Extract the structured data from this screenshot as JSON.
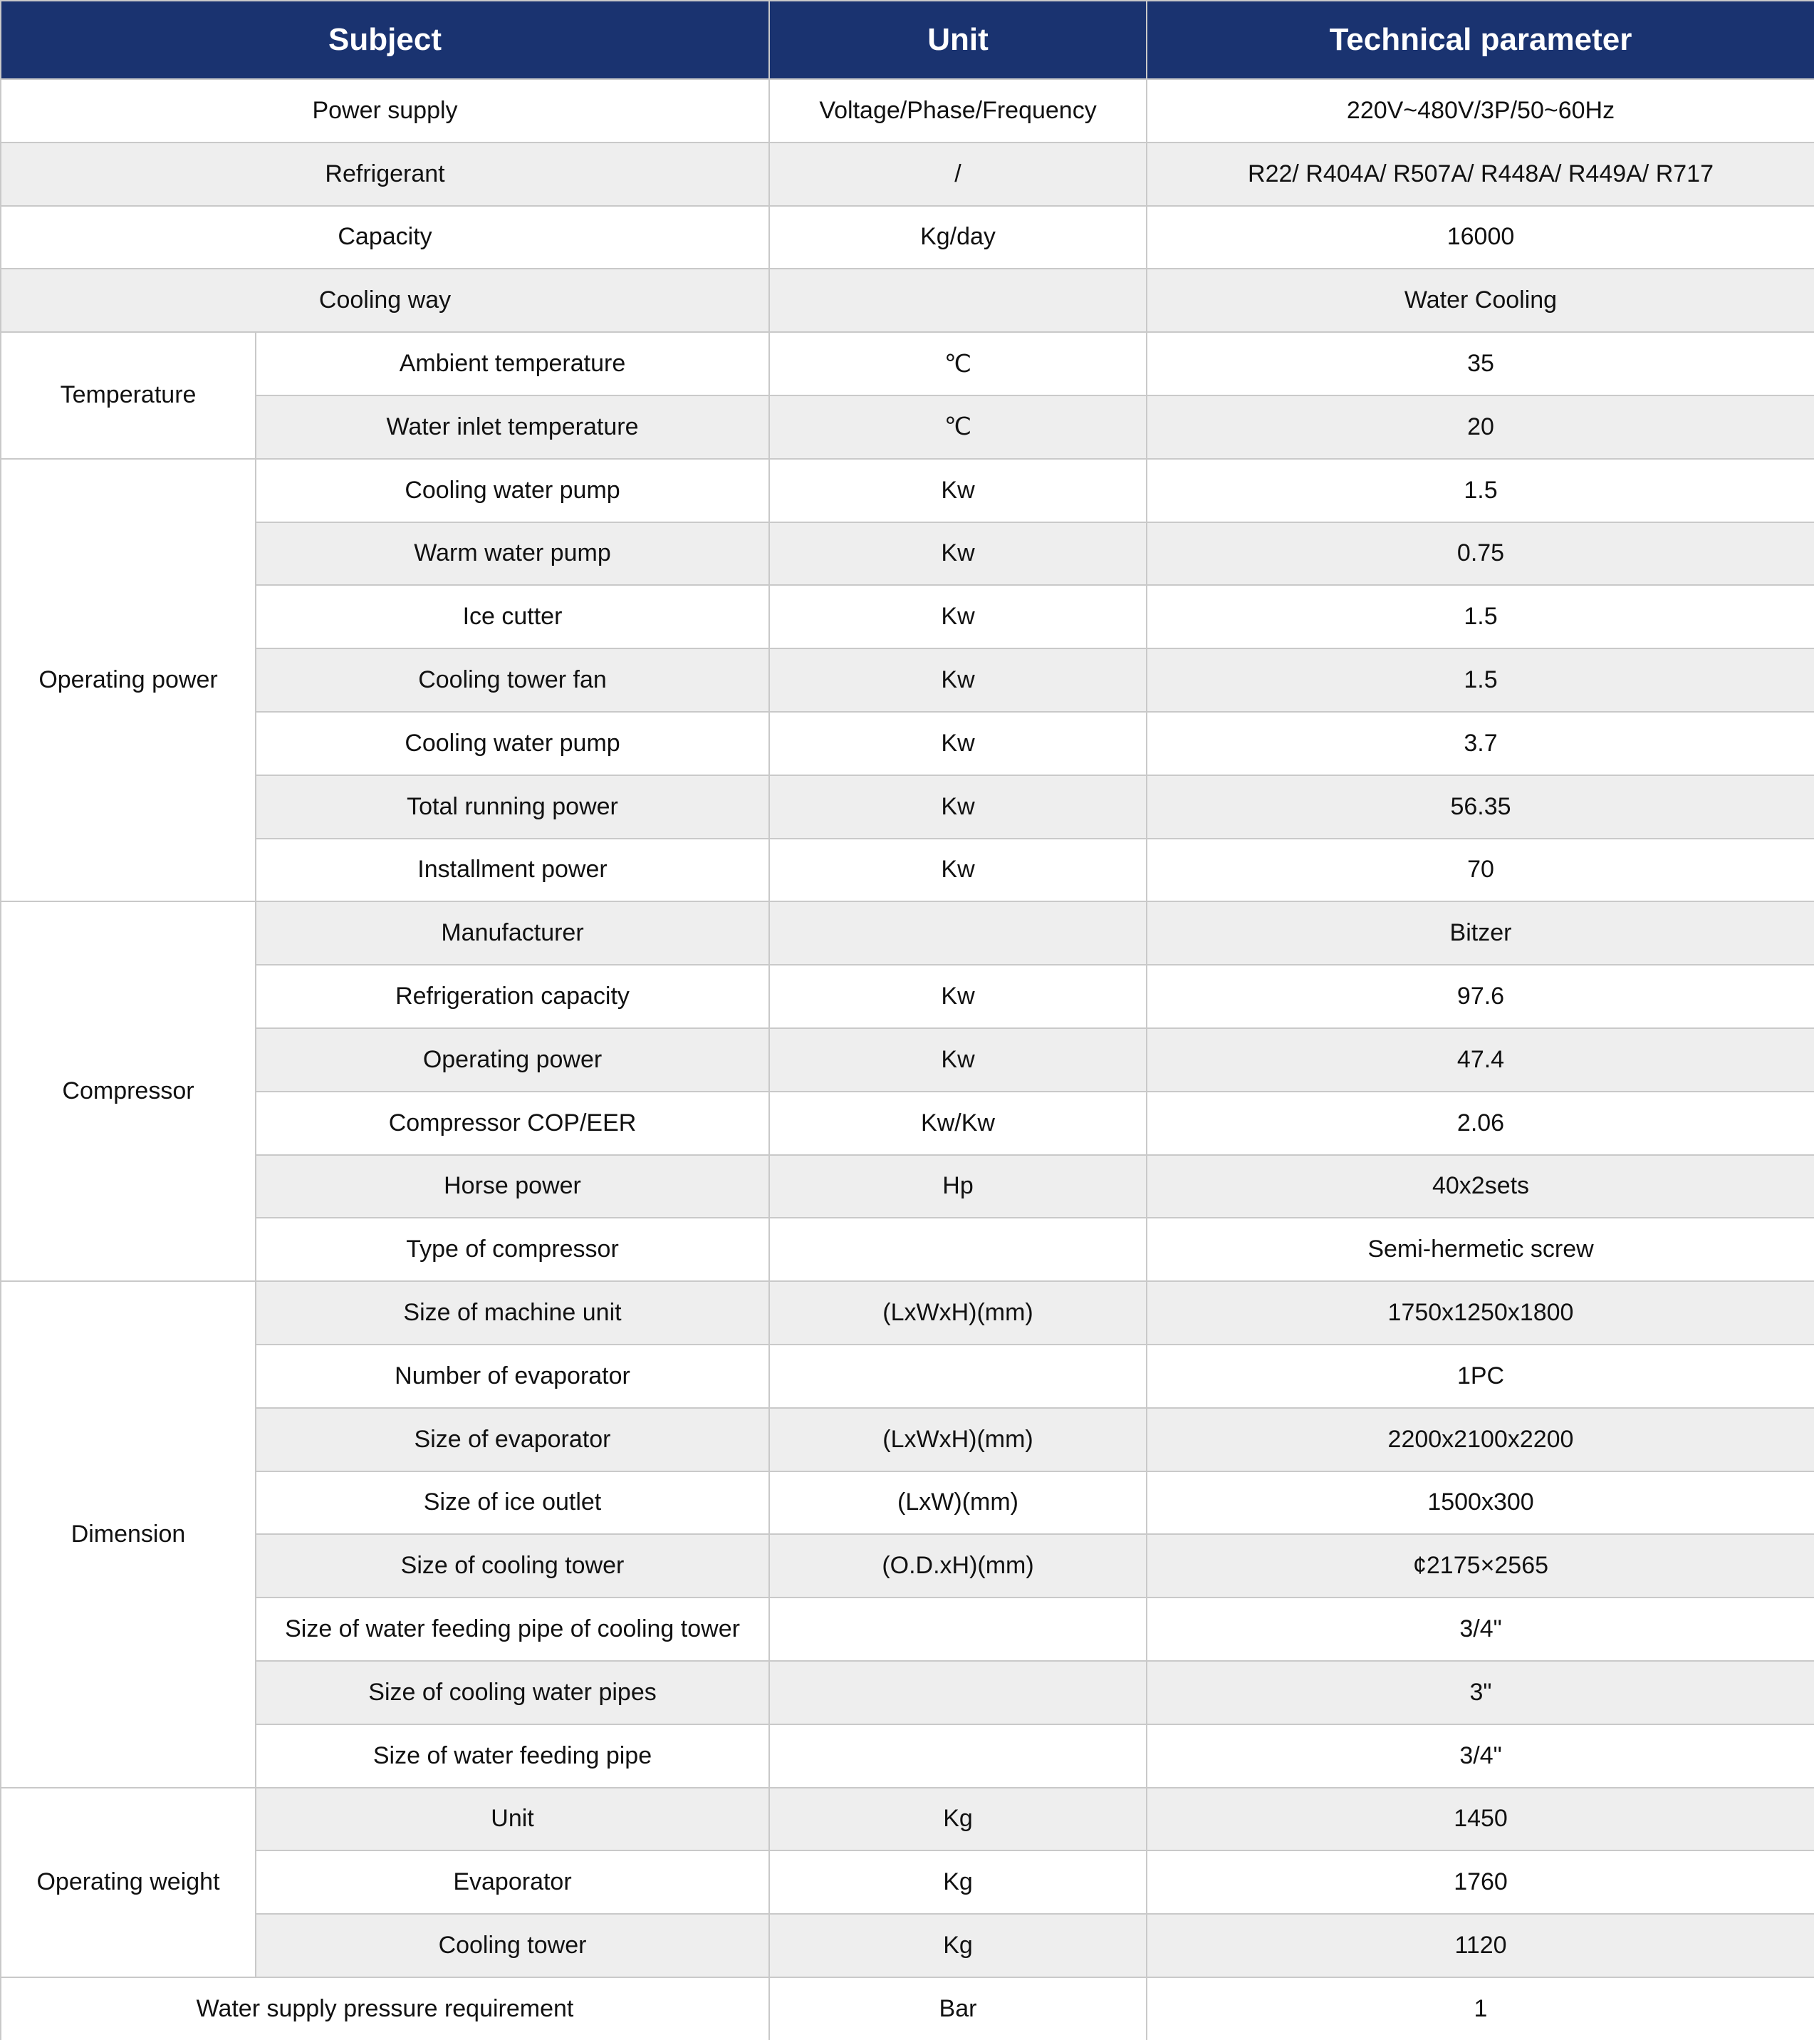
{
  "table": {
    "header": [
      "Subject",
      "Unit",
      "Technical parameter"
    ],
    "rows": [
      {
        "subject": "Power supply",
        "unit": "Voltage/Phase/Frequency",
        "value": "220V~480V/3P/50~60Hz"
      },
      {
        "subject": "Refrigerant",
        "unit": "/",
        "value": "R22/ R404A/ R507A/ R448A/ R449A/ R717"
      },
      {
        "subject": "Capacity",
        "unit": "Kg/day",
        "value": "16000"
      },
      {
        "subject": "Cooling way",
        "value": "Water Cooling"
      },
      {
        "group": "Temperature",
        "items": [
          {
            "subject": "Ambient temperature",
            "unit": "℃",
            "value": "35"
          },
          {
            "subject": "Water inlet temperature",
            "unit": "℃",
            "value": "20"
          }
        ]
      },
      {
        "group": "Operating power",
        "items": [
          {
            "subject": "Cooling water pump",
            "unit": "Kw",
            "value": "1.5"
          },
          {
            "subject": "Warm water pump",
            "unit": "Kw",
            "value": "0.75"
          },
          {
            "subject": "Ice cutter",
            "unit": "Kw",
            "value": "1.5"
          },
          {
            "subject": "Cooling tower fan",
            "unit": "Kw",
            "value": "1.5"
          },
          {
            "subject": "Cooling water pump",
            "unit": "Kw",
            "value": "3.7"
          },
          {
            "subject": "Total running power",
            "unit": "Kw",
            "value": "56.35"
          },
          {
            "subject": "Installment power",
            "unit": "Kw",
            "value": "70"
          }
        ]
      },
      {
        "group": "Compressor",
        "items": [
          {
            "subject": "Manufacturer",
            "value": "Bitzer"
          },
          {
            "subject": "Refrigeration capacity",
            "unit": "Kw",
            "value": "97.6"
          },
          {
            "subject": "Operating power",
            "unit": "Kw",
            "value": "47.4"
          },
          {
            "subject": "Compressor COP/EER",
            "unit": "Kw/Kw",
            "value": "2.06"
          },
          {
            "subject": "Horse power",
            "unit": "Hp",
            "value": "40x2sets"
          },
          {
            "subject": "Type of compressor",
            "value": "Semi-hermetic screw"
          }
        ]
      },
      {
        "group": "Dimension",
        "items": [
          {
            "subject": "Size of machine unit",
            "unit": "(LxWxH)(mm)",
            "value": "1750x1250x1800"
          },
          {
            "subject": "Number of evaporator",
            "value": "1PC"
          },
          {
            "subject": "Size of evaporator",
            "unit": "(LxWxH)(mm)",
            "value": "2200x2100x2200"
          },
          {
            "subject": "Size of ice outlet",
            "unit": "(LxW)(mm)",
            "value": "1500x300"
          },
          {
            "subject": "Size of cooling tower",
            "unit": "(O.D.xH)(mm)",
            "value": "¢2175×2565"
          },
          {
            "subject": "Size of water feeding pipe of cooling tower",
            "value": "3/4\""
          },
          {
            "subject": "Size of cooling water pipes",
            "value": "3\""
          },
          {
            "subject": "Size of water feeding pipe",
            "value": "3/4\""
          }
        ]
      },
      {
        "group": "Operating weight",
        "items": [
          {
            "subject": "Unit",
            "unit": "Kg",
            "value": "1450"
          },
          {
            "subject": "Evaporator",
            "unit": "Kg",
            "value": "1760"
          },
          {
            "subject": "Cooling tower",
            "unit": "Kg",
            "value": "1120"
          }
        ]
      },
      {
        "subject": "Water supply pressure requirement",
        "unit": "Bar",
        "value": "1"
      }
    ]
  }
}
